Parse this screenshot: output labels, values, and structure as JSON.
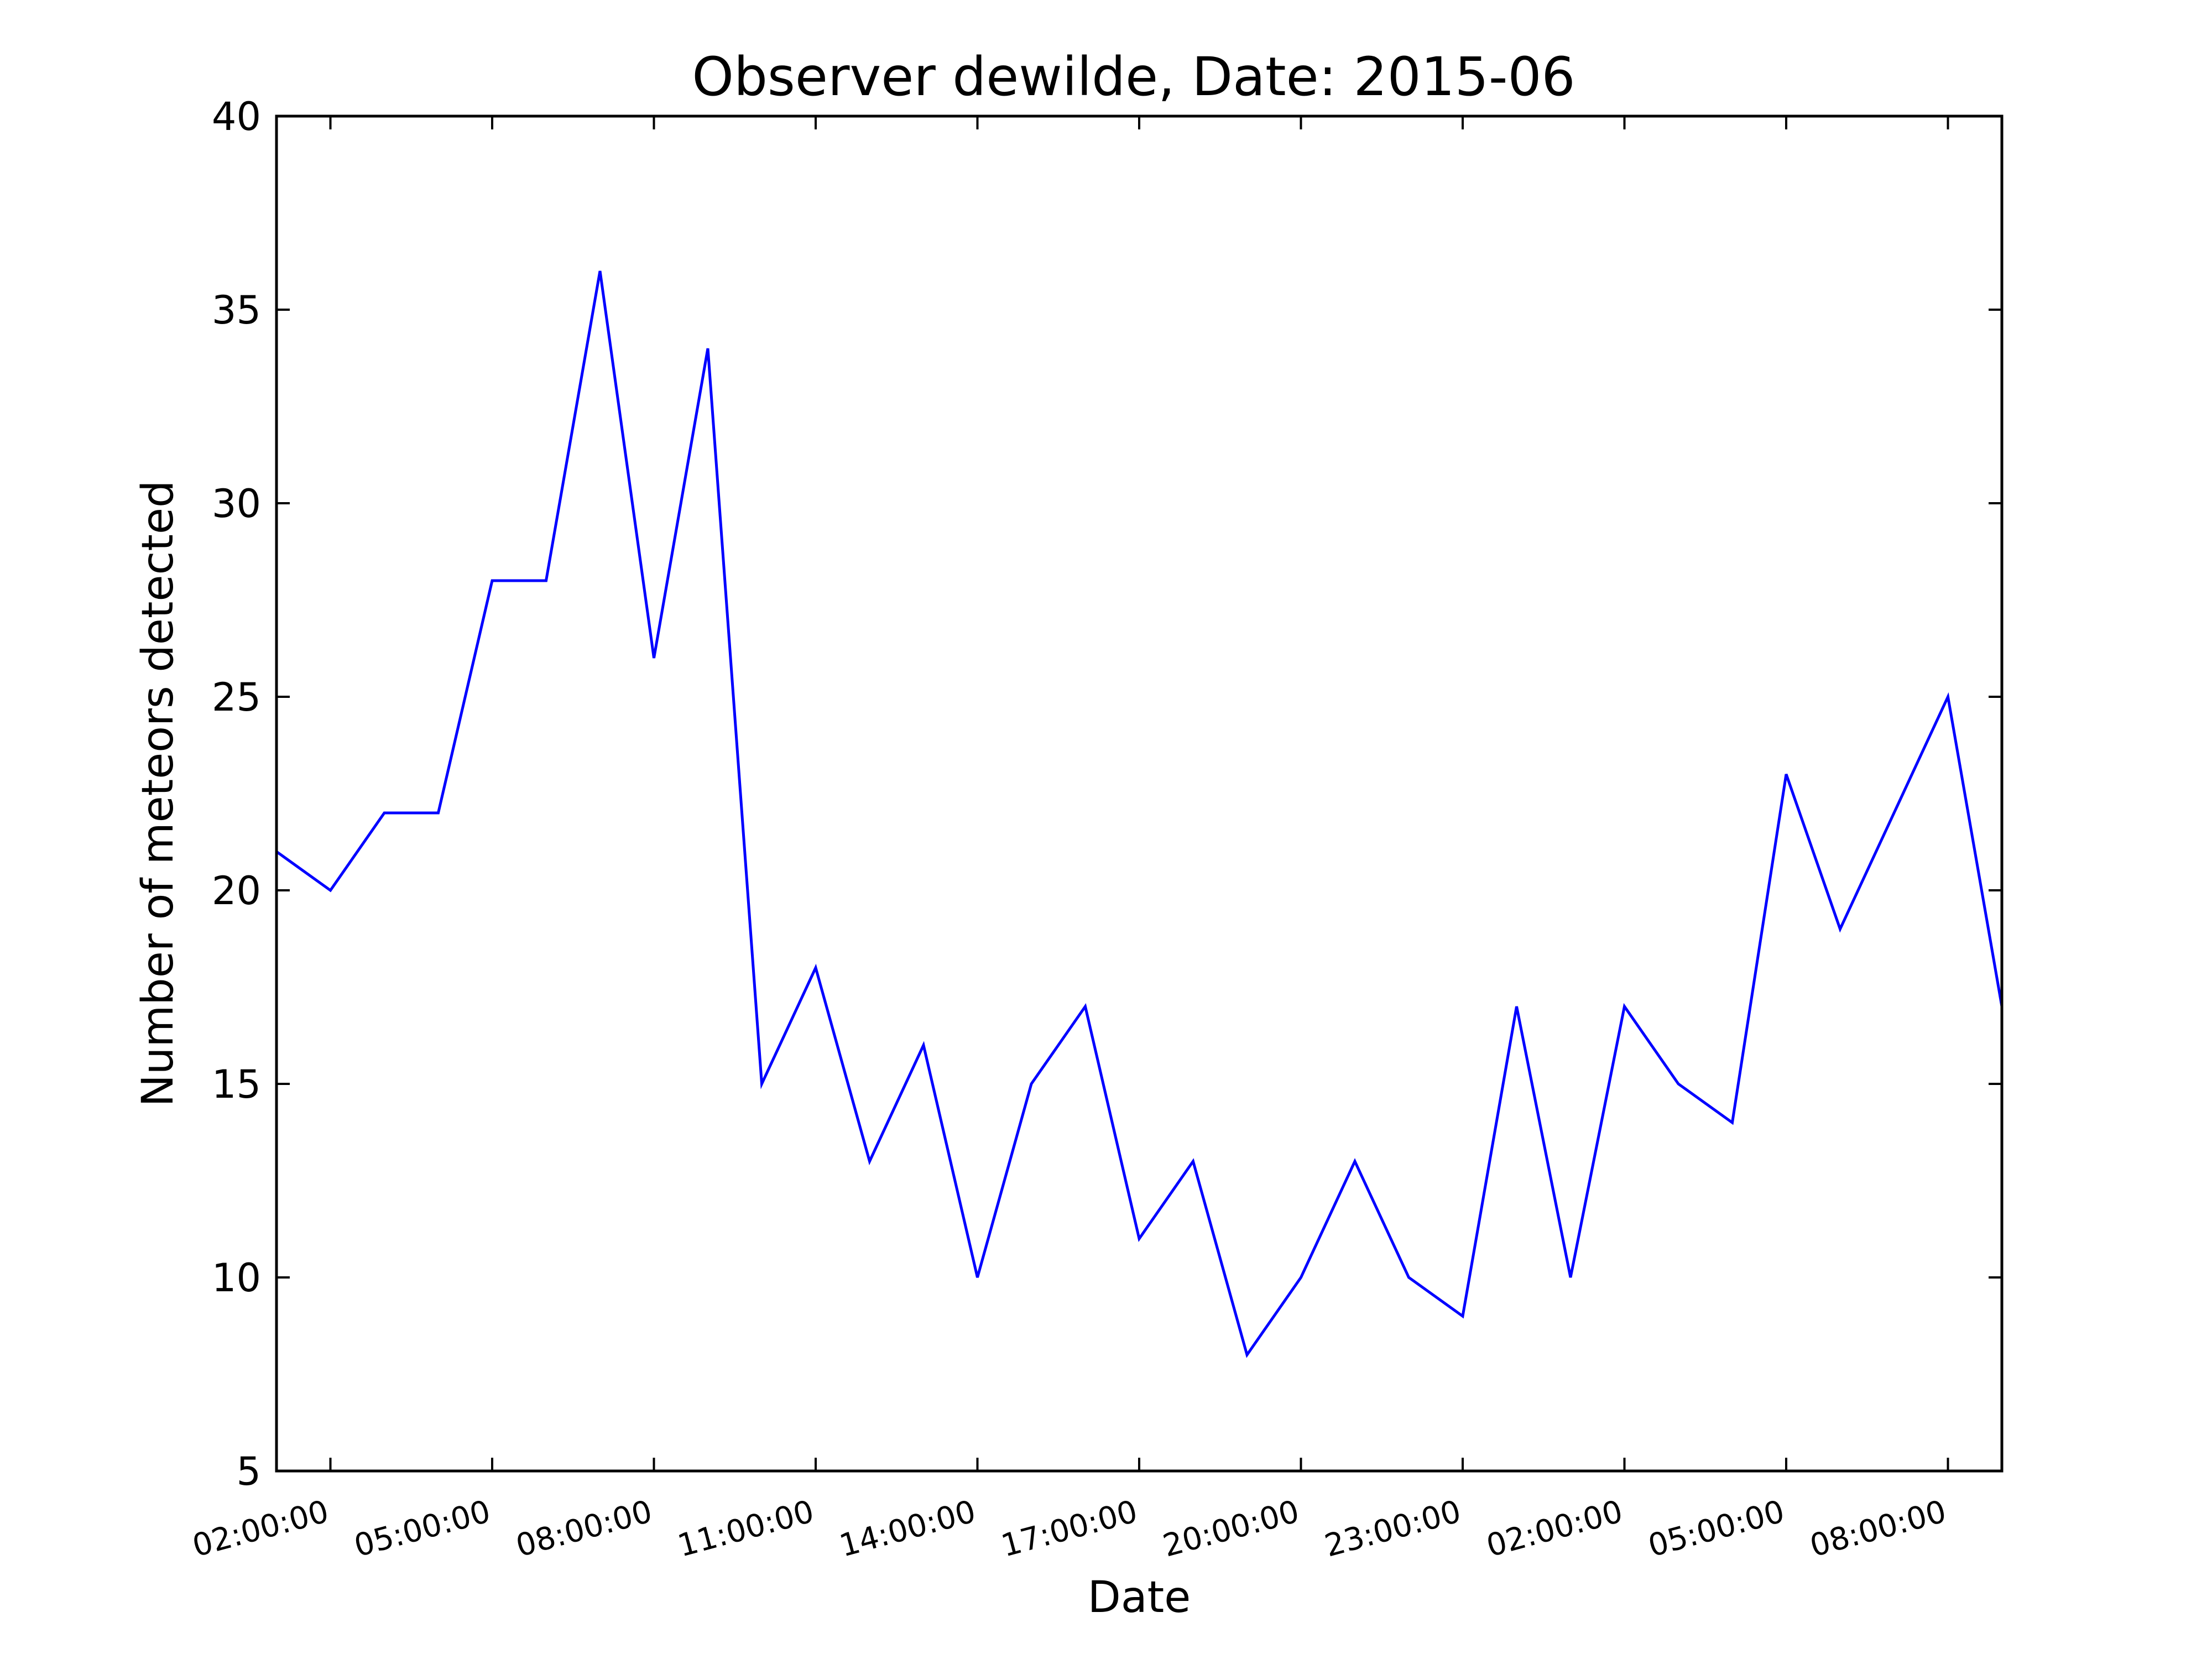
{
  "chart_data": {
    "type": "line",
    "title": "Observer dewilde, Date: 2015-06",
    "xlabel": "Date",
    "ylabel": "Number of meteors detected",
    "ylim": [
      5,
      40
    ],
    "yticks": [
      "5",
      "10",
      "15",
      "20",
      "25",
      "30",
      "35",
      "40"
    ],
    "xlim": [
      "01:00:00",
      "09:00:00 (+1 day)"
    ],
    "xtick_labels": [
      "02:00:00",
      "05:00:00",
      "08:00:00",
      "11:00:00",
      "14:00:00",
      "17:00:00",
      "20:00:00",
      "23:00:00",
      "02:00:00",
      "05:00:00",
      "08:00:00"
    ],
    "grid": false,
    "line_color": "#0000ff",
    "series": [
      {
        "x": [
          "01:00:00",
          "02:00:00",
          "03:00:00",
          "04:00:00",
          "05:00:00",
          "06:00:00",
          "07:00:00",
          "08:00:00",
          "09:00:00",
          "10:00:00",
          "11:00:00",
          "12:00:00",
          "13:00:00",
          "14:00:00",
          "15:00:00",
          "16:00:00",
          "17:00:00",
          "18:00:00",
          "19:00:00",
          "20:00:00",
          "21:00:00",
          "22:00:00",
          "23:00:00",
          "00:00:00",
          "01:00:00",
          "02:00:00",
          "03:00:00",
          "04:00:00",
          "05:00:00",
          "06:00:00",
          "07:00:00",
          "08:00:00",
          "09:00:00"
        ],
        "values": [
          21,
          20,
          22,
          22,
          28,
          28,
          36,
          26,
          34,
          15,
          18,
          13,
          16,
          10,
          15,
          17,
          11,
          13,
          8,
          10,
          13,
          10,
          9,
          17,
          10,
          17,
          15,
          14,
          23,
          19,
          22,
          25,
          17
        ]
      }
    ]
  }
}
